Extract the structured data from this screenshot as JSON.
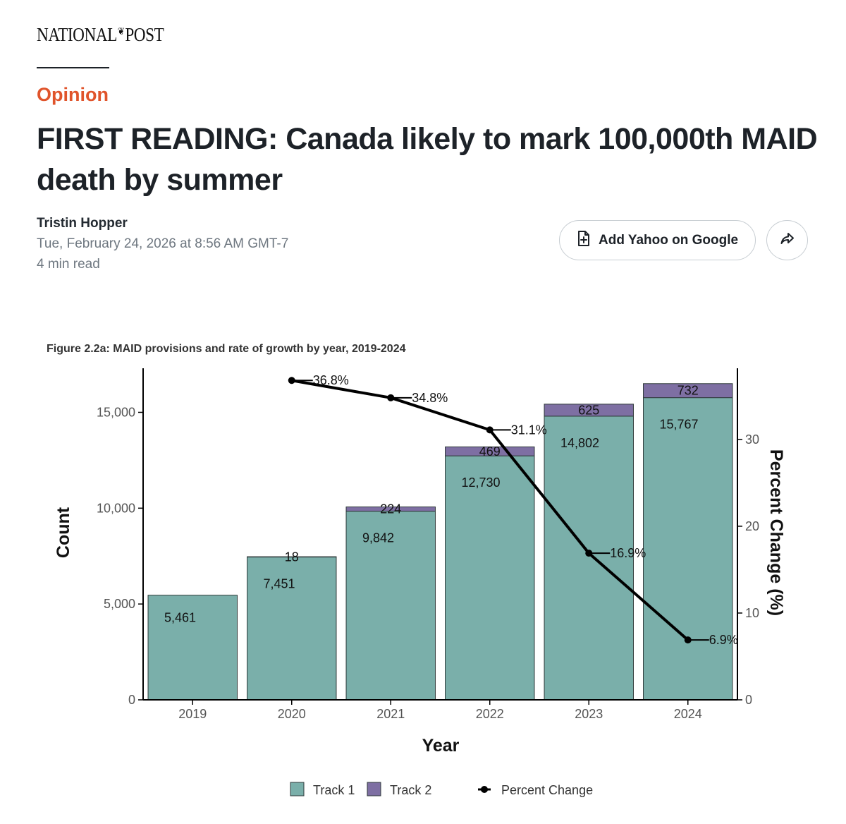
{
  "site": {
    "masthead_left": "NATIONAL",
    "masthead_leaf": "❦",
    "masthead_right": "POST"
  },
  "article": {
    "category": "Opinion",
    "headline": "FIRST READING: Canada likely to mark 100,000th MAID death by summer",
    "author": "Tristin Hopper",
    "date": "Tue, February 24, 2026 at 8:56 AM GMT-7",
    "read_time": "4 min read"
  },
  "actions": {
    "add_yahoo_label": "Add Yahoo on Google"
  },
  "colors": {
    "accent": "#e0542b",
    "track1": "#7aafaa",
    "track2": "#7e6fa3",
    "line": "#000000"
  },
  "chart_data": {
    "type": "bar",
    "title": "Figure 2.2a: MAID provisions and rate of growth by year, 2019-2024",
    "xlabel": "Year",
    "ylabel": "Count",
    "y2label": "Percent Change (%)",
    "categories": [
      "2019",
      "2020",
      "2021",
      "2022",
      "2023",
      "2024"
    ],
    "ylim": [
      0,
      17300
    ],
    "y2lim": [
      0,
      38.2
    ],
    "yticks": [
      0,
      5000,
      10000,
      15000
    ],
    "ytick_labels": [
      "0",
      "5,000",
      "10,000",
      "15,000"
    ],
    "y2ticks": [
      0,
      10,
      20,
      30
    ],
    "y2tick_labels": [
      "0",
      "10",
      "20",
      "30"
    ],
    "series": [
      {
        "name": "Track 1",
        "kind": "stacked-bar",
        "values": [
          5461,
          7451,
          9842,
          12730,
          14802,
          15767
        ],
        "labels": [
          "5,461",
          "7,451",
          "9,842",
          "12,730",
          "14,802",
          "15,767"
        ]
      },
      {
        "name": "Track 2",
        "kind": "stacked-bar",
        "values": [
          0,
          18,
          224,
          469,
          625,
          732
        ],
        "labels": [
          "",
          "18",
          "224",
          "469",
          "625",
          "732"
        ]
      },
      {
        "name": "Percent Change",
        "kind": "line",
        "axis": "right",
        "values": [
          null,
          36.8,
          34.8,
          31.1,
          16.9,
          6.9
        ],
        "labels": [
          "",
          "36.8%",
          "34.8%",
          "31.1%",
          "16.9%",
          "6.9%"
        ]
      }
    ],
    "legend": [
      "Track 1",
      "Track 2",
      "Percent Change"
    ],
    "legend_position": "bottom",
    "grid": false
  }
}
